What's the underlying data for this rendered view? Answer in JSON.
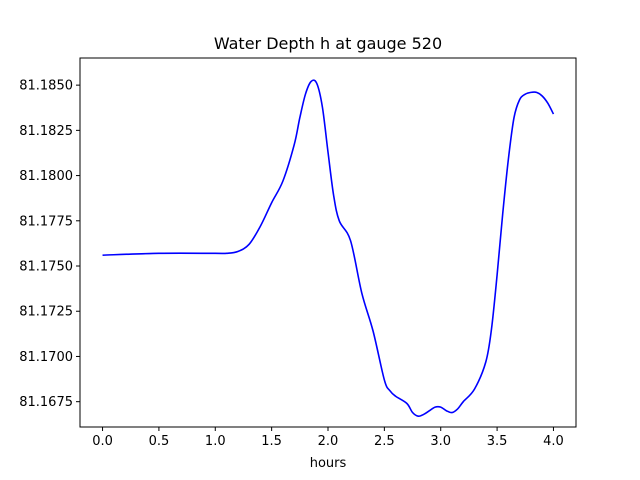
{
  "chart_data": {
    "type": "line",
    "title": "Water Depth h at gauge 520",
    "xlabel": "hours",
    "ylabel": "",
    "xlim": [
      -0.2,
      4.2
    ],
    "ylim": [
      81.1661,
      81.1865
    ],
    "grid": false,
    "x_ticks": [
      0.0,
      0.5,
      1.0,
      1.5,
      2.0,
      2.5,
      3.0,
      3.5,
      4.0
    ],
    "x_tick_labels": [
      "0.0",
      "0.5",
      "1.0",
      "1.5",
      "2.0",
      "2.5",
      "3.0",
      "3.5",
      "4.0"
    ],
    "y_ticks": [
      81.1675,
      81.17,
      81.1725,
      81.175,
      81.1775,
      81.18,
      81.1825,
      81.185
    ],
    "y_tick_labels": [
      "81.1675",
      "81.1700",
      "81.1725",
      "81.1750",
      "81.1775",
      "81.1800",
      "81.1825",
      "81.1850"
    ],
    "series": [
      {
        "color": "#0000ff",
        "x": [
          0.0,
          0.5,
          1.0,
          1.1,
          1.2,
          1.3,
          1.4,
          1.5,
          1.6,
          1.7,
          1.75,
          1.8,
          1.85,
          1.9,
          1.95,
          2.0,
          2.05,
          2.1,
          2.2,
          2.3,
          2.4,
          2.5,
          2.55,
          2.6,
          2.7,
          2.75,
          2.8,
          2.85,
          2.9,
          2.95,
          3.0,
          3.05,
          3.1,
          3.15,
          3.2,
          3.3,
          3.4,
          3.45,
          3.5,
          3.55,
          3.6,
          3.65,
          3.7,
          3.75,
          3.8,
          3.85,
          3.9,
          3.95,
          4.0
        ],
        "values": [
          81.1756,
          81.1757,
          81.1757,
          81.1757,
          81.1758,
          81.1762,
          81.1772,
          81.1785,
          81.1797,
          81.1817,
          81.1832,
          81.1845,
          81.1852,
          81.1851,
          81.1838,
          81.1813,
          81.1789,
          81.1775,
          81.1764,
          81.1735,
          81.1714,
          81.1687,
          81.1681,
          81.1678,
          81.1674,
          81.1669,
          81.1667,
          81.1668,
          81.167,
          81.1672,
          81.1672,
          81.167,
          81.1669,
          81.1671,
          81.1675,
          81.1682,
          81.1697,
          81.1715,
          81.1745,
          81.1779,
          81.1809,
          81.1832,
          81.1842,
          81.1845,
          81.1846,
          81.1846,
          81.1844,
          81.184,
          81.1834
        ]
      }
    ]
  }
}
